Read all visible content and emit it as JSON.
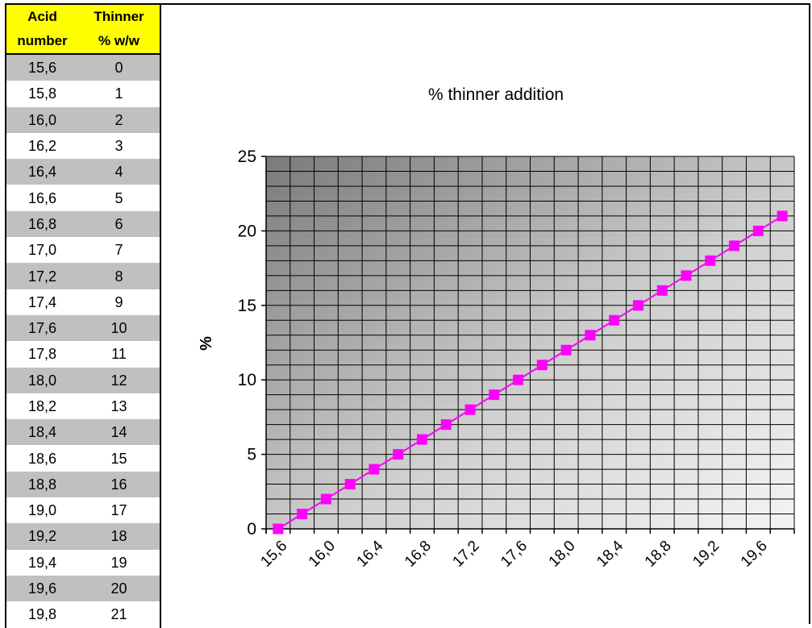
{
  "table": {
    "headers": [
      [
        "Acid",
        "Thinner"
      ],
      [
        "number",
        "% w/w"
      ]
    ],
    "rows": [
      [
        "15,6",
        "0"
      ],
      [
        "15,8",
        "1"
      ],
      [
        "16,0",
        "2"
      ],
      [
        "16,2",
        "3"
      ],
      [
        "16,4",
        "4"
      ],
      [
        "16,6",
        "5"
      ],
      [
        "16,8",
        "6"
      ],
      [
        "17,0",
        "7"
      ],
      [
        "17,2",
        "8"
      ],
      [
        "17,4",
        "9"
      ],
      [
        "17,6",
        "10"
      ],
      [
        "17,8",
        "11"
      ],
      [
        "18,0",
        "12"
      ],
      [
        "18,2",
        "13"
      ],
      [
        "18,4",
        "14"
      ],
      [
        "18,6",
        "15"
      ],
      [
        "18,8",
        "16"
      ],
      [
        "19,0",
        "17"
      ],
      [
        "19,2",
        "18"
      ],
      [
        "19,4",
        "19"
      ],
      [
        "19,6",
        "20"
      ],
      [
        "19,8",
        "21"
      ]
    ]
  },
  "chart_data": {
    "type": "line",
    "title": "% thinner addition",
    "xlabel": "",
    "ylabel": "%",
    "categories": [
      "15,6",
      "15,8",
      "16,0",
      "16,2",
      "16,4",
      "16,6",
      "16,8",
      "17,0",
      "17,2",
      "17,4",
      "17,6",
      "17,8",
      "18,0",
      "18,2",
      "18,4",
      "18,6",
      "18,8",
      "19,0",
      "19,2",
      "19,4",
      "19,6",
      "19,8"
    ],
    "x_tick_labels": [
      "15,6",
      "16,0",
      "16,4",
      "16,8",
      "17,2",
      "17,6",
      "18,0",
      "18,4",
      "18,8",
      "19,2",
      "19,6"
    ],
    "series": [
      {
        "values": [
          0,
          1,
          2,
          3,
          4,
          5,
          6,
          7,
          8,
          9,
          10,
          11,
          12,
          13,
          14,
          15,
          16,
          17,
          18,
          19,
          20,
          21
        ],
        "color": "#ff00ff",
        "marker": "square"
      }
    ],
    "y_ticks": [
      0,
      5,
      10,
      15,
      20,
      25
    ],
    "ylim": [
      0,
      25
    ],
    "grid": true,
    "legend": "none",
    "plot_background": "#c8c8c8"
  }
}
